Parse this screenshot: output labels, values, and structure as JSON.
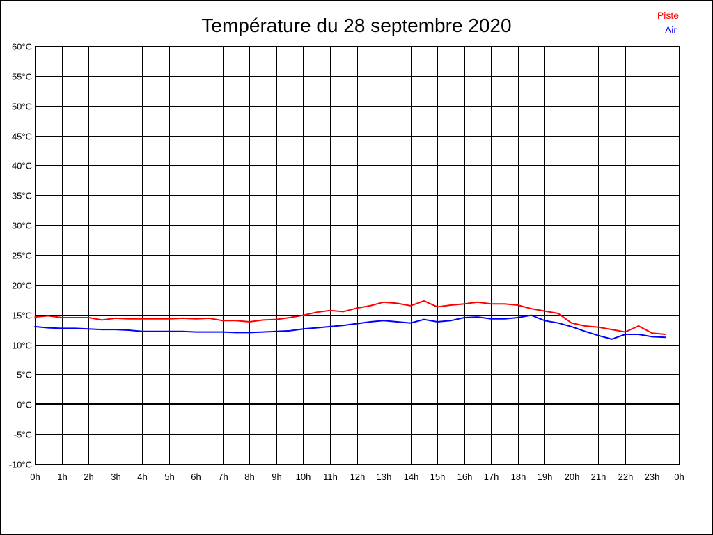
{
  "chart_data": {
    "type": "line",
    "title": "Température du 28 septembre 2020",
    "xlabel": "",
    "ylabel": "",
    "ylim": [
      -10,
      60
    ],
    "xlim": [
      0,
      24
    ],
    "grid": true,
    "legend_position": "top-right",
    "y_ticks": [
      60,
      55,
      50,
      45,
      40,
      35,
      30,
      25,
      20,
      15,
      10,
      5,
      0,
      -5,
      -10
    ],
    "y_tick_labels": [
      "60°C",
      "55°C",
      "50°C",
      "45°C",
      "40°C",
      "35°C",
      "30°C",
      "25°C",
      "20°C",
      "15°C",
      "10°C",
      "5°C",
      "0°C",
      "-5°C",
      "-10°C"
    ],
    "x_tick_labels": [
      "0h",
      "1h",
      "2h",
      "3h",
      "4h",
      "5h",
      "6h",
      "7h",
      "8h",
      "9h",
      "10h",
      "11h",
      "12h",
      "13h",
      "14h",
      "15h",
      "16h",
      "17h",
      "18h",
      "19h",
      "20h",
      "21h",
      "22h",
      "23h",
      "0h"
    ],
    "x": [
      0,
      0.5,
      1,
      1.5,
      2,
      2.5,
      3,
      3.5,
      4,
      4.5,
      5,
      5.5,
      6,
      6.5,
      7,
      7.5,
      8,
      8.5,
      9,
      9.5,
      10,
      10.5,
      11,
      11.5,
      12,
      12.5,
      13,
      13.5,
      14,
      14.5,
      15,
      15.5,
      16,
      16.5,
      17,
      17.5,
      18,
      18.5,
      19,
      19.5,
      20,
      20.5,
      21,
      21.5,
      22,
      22.5,
      23,
      23.5
    ],
    "series": [
      {
        "name": "Piste",
        "color": "#ff0000",
        "values": [
          14.6,
          14.8,
          14.5,
          14.5,
          14.5,
          14.1,
          14.4,
          14.3,
          14.3,
          14.3,
          14.3,
          14.4,
          14.3,
          14.4,
          14.0,
          14.0,
          13.8,
          14.1,
          14.2,
          14.5,
          14.9,
          15.4,
          15.7,
          15.5,
          16.1,
          16.5,
          17.1,
          16.9,
          16.5,
          17.3,
          16.3,
          16.6,
          16.8,
          17.1,
          16.8,
          16.8,
          16.6,
          16.0,
          15.6,
          15.2,
          13.6,
          13.1,
          12.9,
          12.5,
          12.1,
          13.1,
          11.9,
          11.7
        ]
      },
      {
        "name": "Air",
        "color": "#0000ff",
        "values": [
          13.0,
          12.8,
          12.7,
          12.7,
          12.6,
          12.5,
          12.5,
          12.4,
          12.2,
          12.2,
          12.2,
          12.2,
          12.1,
          12.1,
          12.1,
          12.0,
          12.0,
          12.1,
          12.2,
          12.3,
          12.6,
          12.8,
          13.0,
          13.2,
          13.5,
          13.8,
          14.0,
          13.8,
          13.6,
          14.2,
          13.8,
          14.0,
          14.5,
          14.6,
          14.3,
          14.3,
          14.5,
          14.9,
          14.0,
          13.6,
          13.0,
          12.2,
          11.5,
          10.9,
          11.7,
          11.7,
          11.3,
          11.2
        ]
      }
    ]
  }
}
